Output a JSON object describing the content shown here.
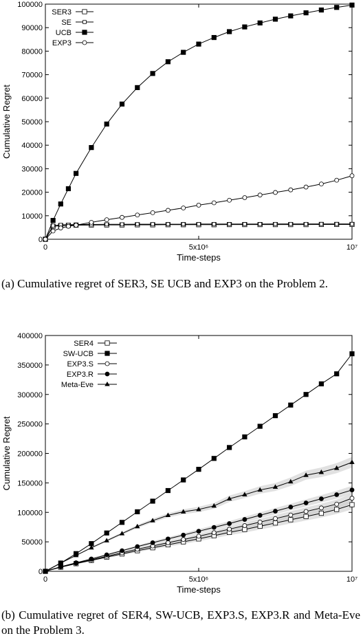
{
  "captions": {
    "a": "(a) Cumulative regret of SER3, SE UCB and EXP3 on the Problem 2.",
    "b": "(b) Cumulative regret of SER4, SW-UCB, EXP3.S, EXP3.R and Meta-Eve on the Problem 3."
  },
  "chart_data": [
    {
      "type": "line",
      "xlabel": "Time-steps",
      "ylabel": "Cumulative Regret",
      "xlim": [
        0,
        10000000
      ],
      "ylim": [
        0,
        100000
      ],
      "x_ticks": [
        {
          "value": 0,
          "label": "0"
        },
        {
          "value": 5000000,
          "label": "5x10⁶"
        },
        {
          "value": 10000000,
          "label": "10⁷"
        }
      ],
      "y_ticks": [
        0,
        10000,
        20000,
        30000,
        40000,
        50000,
        60000,
        70000,
        80000,
        90000,
        100000
      ],
      "y_tick_labels": [
        "0",
        "10000",
        "20000",
        "30000",
        "40000",
        "50000",
        "60000",
        "70000",
        "80000",
        "90000",
        "100000"
      ],
      "grid": false,
      "legend_position": "top-left",
      "x": [
        0,
        250000,
        500000,
        750000,
        1000000,
        1500000,
        2000000,
        2500000,
        3000000,
        3500000,
        4000000,
        4500000,
        5000000,
        5500000,
        6000000,
        6500000,
        7000000,
        7500000,
        8000000,
        8500000,
        9000000,
        9500000,
        10000000
      ],
      "series": [
        {
          "name": "SER3",
          "marker": "square-open",
          "color": "#000000",
          "values": [
            0,
            5500,
            5800,
            5900,
            6000,
            6050,
            6100,
            6100,
            6150,
            6150,
            6200,
            6200,
            6200,
            6200,
            6250,
            6250,
            6250,
            6250,
            6250,
            6250,
            6300,
            6300,
            6300
          ]
        },
        {
          "name": "SE",
          "marker": "square-open-small",
          "color": "#000000",
          "values": [
            0,
            5800,
            6100,
            6200,
            6250,
            6300,
            6350,
            6350,
            6400,
            6400,
            6400,
            6400,
            6450,
            6450,
            6450,
            6450,
            6450,
            6500,
            6500,
            6500,
            6500,
            6500,
            6500
          ]
        },
        {
          "name": "UCB",
          "marker": "square-filled",
          "color": "#000000",
          "values": [
            0,
            8000,
            15000,
            21500,
            28000,
            39000,
            49000,
            57500,
            64500,
            70500,
            75500,
            79500,
            83000,
            85800,
            88300,
            90300,
            92000,
            93600,
            95000,
            96300,
            97500,
            98600,
            99600
          ]
        },
        {
          "name": "EXP3",
          "marker": "circle-open",
          "color": "#000000",
          "values": [
            0,
            3500,
            4800,
            5500,
            6000,
            7200,
            8300,
            9300,
            10300,
            11300,
            12300,
            13300,
            14500,
            15500,
            16600,
            17700,
            18800,
            19900,
            21000,
            22200,
            23500,
            25100,
            27000
          ]
        }
      ]
    },
    {
      "type": "line",
      "xlabel": "Time-steps",
      "ylabel": "Cumulative Regret",
      "xlim": [
        0,
        10000000
      ],
      "ylim": [
        0,
        400000
      ],
      "x_ticks": [
        {
          "value": 0,
          "label": "0"
        },
        {
          "value": 5000000,
          "label": "5x10⁶"
        },
        {
          "value": 10000000,
          "label": "10⁷"
        }
      ],
      "y_ticks": [
        0,
        50000,
        100000,
        150000,
        200000,
        250000,
        300000,
        350000,
        400000
      ],
      "y_tick_labels": [
        "0",
        "50000",
        "100000",
        "150000",
        "200000",
        "250000",
        "300000",
        "350000",
        "400000"
      ],
      "grid": false,
      "legend_position": "top-left",
      "x": [
        0,
        500000,
        1000000,
        1500000,
        2000000,
        2500000,
        3000000,
        3500000,
        4000000,
        4500000,
        5000000,
        5500000,
        6000000,
        6500000,
        7000000,
        7500000,
        8000000,
        8500000,
        9000000,
        9500000,
        10000000
      ],
      "series": [
        {
          "name": "SER4",
          "marker": "square-open",
          "color": "#000000",
          "band": 8000,
          "values": [
            0,
            7000,
            13000,
            18500,
            24000,
            29500,
            35000,
            40000,
            45000,
            50000,
            55000,
            60500,
            66000,
            71000,
            76500,
            82000,
            87500,
            93000,
            98500,
            105000,
            113000
          ]
        },
        {
          "name": "SW-UCB",
          "marker": "square-filled",
          "color": "#000000",
          "values": [
            0,
            14000,
            30000,
            47000,
            65000,
            83000,
            101000,
            119000,
            137000,
            155000,
            173000,
            191500,
            210000,
            228000,
            246000,
            264000,
            282000,
            300000,
            318000,
            335000,
            369000
          ]
        },
        {
          "name": "EXP3.S",
          "marker": "circle-open",
          "color": "#000000",
          "band": 8000,
          "values": [
            0,
            7500,
            13800,
            19500,
            25500,
            31500,
            37500,
            43000,
            48500,
            54000,
            59500,
            65500,
            71500,
            77500,
            83500,
            89500,
            95500,
            101500,
            107500,
            114000,
            124000
          ]
        },
        {
          "name": "EXP3.R",
          "marker": "circle-filled",
          "color": "#000000",
          "band": 7000,
          "values": [
            0,
            7800,
            14500,
            21000,
            28000,
            35000,
            42000,
            48500,
            55000,
            61500,
            68000,
            74500,
            81000,
            88000,
            95000,
            102000,
            109000,
            116000,
            123000,
            130000,
            138000
          ]
        },
        {
          "name": "Meta-Eve",
          "marker": "triangle",
          "color": "#000000",
          "band": 9000,
          "values": [
            0,
            14000,
            27000,
            40000,
            52000,
            64000,
            76000,
            86000,
            95000,
            101000,
            105000,
            111000,
            123000,
            130000,
            138000,
            143000,
            152000,
            163000,
            168000,
            175000,
            185000
          ]
        }
      ]
    }
  ]
}
